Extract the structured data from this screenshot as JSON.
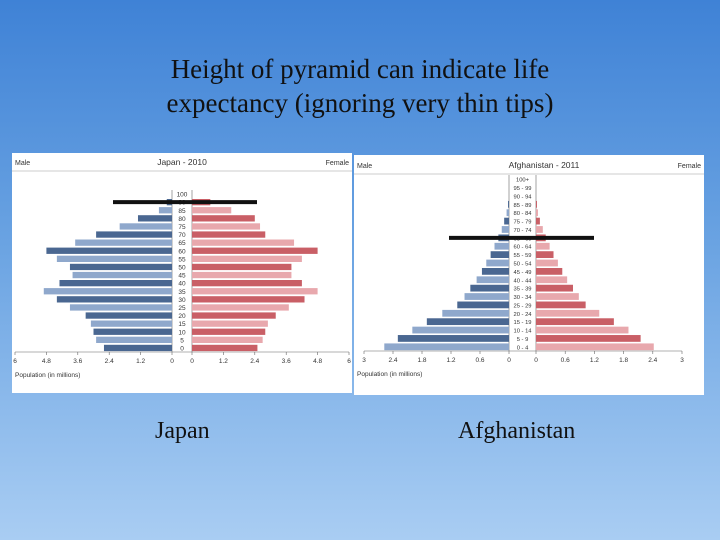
{
  "slide": {
    "title_line1": "Height of pyramid can indicate life",
    "title_line2": "expectancy (ignoring very thin tips)"
  },
  "captions": {
    "japan": "Japan",
    "afghanistan": "Afghanistan"
  },
  "colors": {
    "male_dark": "#4a6791",
    "male_light": "#8fa8cc",
    "female_dark": "#c95f66",
    "female_light": "#e8a8ad",
    "marker": "#111111"
  },
  "chart_data": [
    {
      "type": "bar",
      "title": "Japan - 2010",
      "left_label": "Male",
      "right_label": "Female",
      "xlabel": "Population (in millions)",
      "x_ticks": [
        "6",
        "4.8",
        "3.6",
        "2.4",
        "1.2",
        "0",
        "0",
        "1.2",
        "2.4",
        "3.6",
        "4.8",
        "6"
      ],
      "xlim": [
        0,
        6
      ],
      "age_labels": [
        "100",
        "90",
        "85",
        "80",
        "75",
        "70",
        "65",
        "60",
        "55",
        "50",
        "45",
        "40",
        "35",
        "30",
        "25",
        "20",
        "15",
        "10",
        "5",
        "0"
      ],
      "series": [
        {
          "name": "Male",
          "values": [
            0.0,
            0.2,
            0.5,
            1.3,
            2.0,
            2.9,
            3.7,
            4.8,
            4.4,
            3.9,
            3.8,
            4.3,
            4.9,
            4.4,
            3.9,
            3.3,
            3.1,
            3.0,
            2.9,
            2.6
          ]
        },
        {
          "name": "Female",
          "values": [
            0.0,
            0.7,
            1.5,
            2.4,
            2.6,
            2.8,
            3.9,
            4.8,
            4.2,
            3.8,
            3.8,
            4.2,
            4.8,
            4.3,
            3.7,
            3.2,
            2.9,
            2.8,
            2.7,
            2.5
          ]
        }
      ],
      "marker_line_at_age": "90"
    },
    {
      "type": "bar",
      "title": "Afghanistan - 2011",
      "left_label": "Male",
      "right_label": "Female",
      "xlabel": "Population (in millions)",
      "x_ticks": [
        "3",
        "2.4",
        "1.8",
        "1.2",
        "0.6",
        "0",
        "0",
        "0.6",
        "1.2",
        "1.8",
        "2.4",
        "3"
      ],
      "xlim": [
        0,
        3
      ],
      "age_labels": [
        "100+",
        "95 - 99",
        "90 - 94",
        "85 - 89",
        "80 - 84",
        "75 - 79",
        "70 - 74",
        "65 - 69",
        "60 - 64",
        "55 - 59",
        "50 - 54",
        "45 - 49",
        "40 - 44",
        "35 - 39",
        "30 - 34",
        "25 - 29",
        "20 - 24",
        "15 - 19",
        "10 - 14",
        "5 - 9",
        "0 - 4"
      ],
      "series": [
        {
          "name": "Male",
          "values": [
            0.0,
            0.0,
            0.0,
            0.02,
            0.05,
            0.1,
            0.15,
            0.22,
            0.3,
            0.38,
            0.47,
            0.56,
            0.67,
            0.8,
            0.92,
            1.07,
            1.38,
            1.7,
            2.0,
            2.3,
            2.58
          ]
        },
        {
          "name": "Female",
          "values": [
            0.0,
            0.0,
            0.0,
            0.02,
            0.04,
            0.08,
            0.14,
            0.2,
            0.28,
            0.36,
            0.45,
            0.54,
            0.64,
            0.76,
            0.88,
            1.02,
            1.3,
            1.6,
            1.9,
            2.15,
            2.42
          ]
        }
      ],
      "marker_line_at_age": "65 - 69"
    }
  ]
}
